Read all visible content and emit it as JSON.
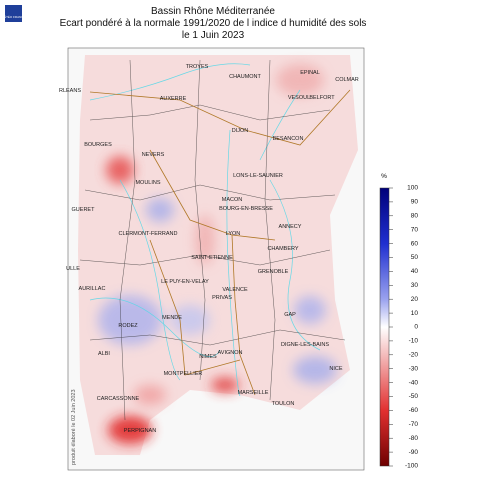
{
  "header": {
    "logo": "MÉTÉO FRANCE",
    "title_lines": [
      "Bassin Rhône Méditerranée",
      "Ecart pondéré à la normale 1991/2020 de l indice d humidité des sols",
      "le 1 Juin 2023"
    ]
  },
  "side_note": "produit élaboré le 02 Juin 2023",
  "colorbar": {
    "unit": "%",
    "ticks": [
      100,
      90,
      80,
      70,
      60,
      50,
      40,
      30,
      20,
      10,
      0,
      -10,
      -20,
      -30,
      -40,
      -50,
      -60,
      -70,
      -80,
      -90,
      -100
    ]
  },
  "map": {
    "cities": [
      "TROYES",
      "CHAUMONT",
      "EPINAL",
      "COLMAR",
      "VESOUL",
      "BELFORT",
      "AUXERRE",
      "RLEANS",
      "BOURGES",
      "NEVERS",
      "DIJON",
      "BESANCON",
      "MOULINS",
      "LONS-LE-SAUNIER",
      "MACON",
      "BOURG-EN-BRESSE",
      "CLERMONT-FERRAND",
      "LYON",
      "ANNECY",
      "CHAMBERY",
      "SAINT-ETIENNE",
      "GRENOBLE",
      "LE PUY-EN-VELAY",
      "VALENCE",
      "PRIVAS",
      "GAP",
      "AURILLAC",
      "RODEZ",
      "MENDE",
      "DIGNE-LES-BAINS",
      "NICE",
      "ALBI",
      "NIMES",
      "AVIGNON",
      "MONTPELLIER",
      "MARSEILLE",
      "TOULON",
      "CARCASSONNE",
      "PERPIGNAN",
      "GUERET",
      "ULLE"
    ]
  }
}
